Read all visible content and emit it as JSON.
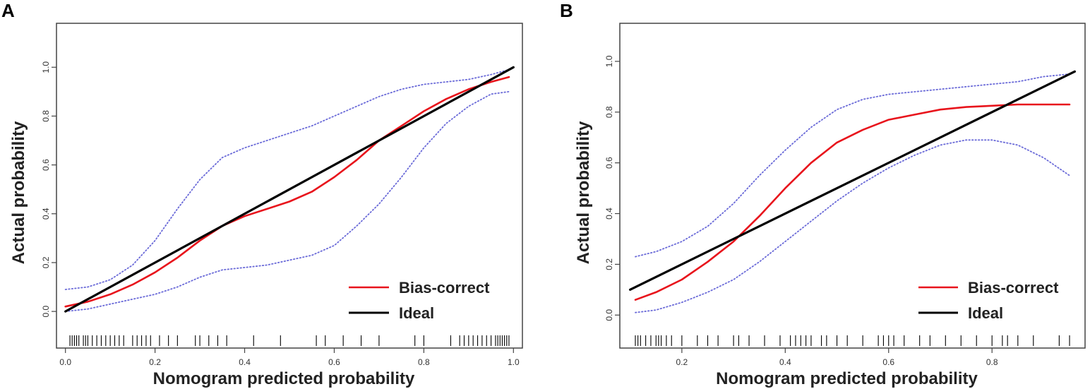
{
  "figure": {
    "panel_labels": [
      "A",
      "B"
    ]
  },
  "colors": {
    "bias_correct": "#e8141c",
    "ideal": "#000000",
    "ci": "#6a6ad8",
    "axis": "#444444"
  },
  "chart_data": [
    {
      "type": "line",
      "panel": "A",
      "title": "",
      "xlabel": "Nomogram predicted probability",
      "ylabel": "Actual probability",
      "xlim": [
        -0.02,
        1.02
      ],
      "ylim": [
        -0.15,
        1.18
      ],
      "xticks": [
        0.0,
        0.2,
        0.4,
        0.6,
        0.8,
        1.0
      ],
      "xtick_labels": [
        "0.0",
        "0.2",
        "0.4",
        "0.6",
        "0.8",
        "1.0"
      ],
      "yticks": [
        0.0,
        0.2,
        0.4,
        0.6,
        0.8,
        1.0
      ],
      "ytick_labels": [
        "0.0",
        "0.2",
        "0.4",
        "0.6",
        "0.8",
        "1.0"
      ],
      "legend": {
        "placement": "bottom-right",
        "entries": [
          "Bias-correct",
          "Ideal"
        ]
      },
      "series": [
        {
          "name": "Ideal",
          "style": "solid",
          "x": [
            0.0,
            1.0
          ],
          "y": [
            0.0,
            1.0
          ]
        },
        {
          "name": "Bias-correct",
          "style": "solid",
          "x": [
            0.0,
            0.05,
            0.1,
            0.15,
            0.2,
            0.25,
            0.3,
            0.35,
            0.4,
            0.45,
            0.5,
            0.55,
            0.6,
            0.65,
            0.7,
            0.75,
            0.8,
            0.85,
            0.9,
            0.95,
            0.99
          ],
          "y": [
            0.02,
            0.04,
            0.07,
            0.11,
            0.16,
            0.22,
            0.29,
            0.35,
            0.39,
            0.42,
            0.45,
            0.49,
            0.55,
            0.62,
            0.7,
            0.76,
            0.82,
            0.87,
            0.91,
            0.94,
            0.96
          ]
        },
        {
          "name": "Upper CI",
          "style": "dotted",
          "x": [
            0.0,
            0.05,
            0.1,
            0.15,
            0.2,
            0.25,
            0.3,
            0.35,
            0.4,
            0.45,
            0.5,
            0.55,
            0.6,
            0.65,
            0.7,
            0.75,
            0.8,
            0.85,
            0.9,
            0.95,
            0.99
          ],
          "y": [
            0.09,
            0.1,
            0.13,
            0.19,
            0.29,
            0.42,
            0.54,
            0.63,
            0.67,
            0.7,
            0.73,
            0.76,
            0.8,
            0.84,
            0.88,
            0.91,
            0.93,
            0.94,
            0.95,
            0.97,
            0.99
          ]
        },
        {
          "name": "Lower CI",
          "style": "dotted",
          "x": [
            0.0,
            0.05,
            0.1,
            0.15,
            0.2,
            0.25,
            0.3,
            0.35,
            0.4,
            0.45,
            0.5,
            0.55,
            0.6,
            0.65,
            0.7,
            0.75,
            0.8,
            0.85,
            0.9,
            0.95,
            0.99
          ],
          "y": [
            0.0,
            0.01,
            0.03,
            0.05,
            0.07,
            0.1,
            0.14,
            0.17,
            0.18,
            0.19,
            0.21,
            0.23,
            0.27,
            0.35,
            0.44,
            0.55,
            0.67,
            0.77,
            0.84,
            0.89,
            0.9
          ]
        }
      ],
      "rug": [
        0.01,
        0.015,
        0.02,
        0.025,
        0.03,
        0.04,
        0.045,
        0.05,
        0.06,
        0.07,
        0.08,
        0.09,
        0.1,
        0.11,
        0.12,
        0.13,
        0.15,
        0.16,
        0.17,
        0.18,
        0.19,
        0.21,
        0.23,
        0.25,
        0.29,
        0.3,
        0.32,
        0.34,
        0.36,
        0.42,
        0.48,
        0.56,
        0.58,
        0.62,
        0.66,
        0.7,
        0.78,
        0.8,
        0.86,
        0.88,
        0.89,
        0.9,
        0.91,
        0.92,
        0.93,
        0.94,
        0.95,
        0.96,
        0.965,
        0.97,
        0.975,
        0.98,
        0.985,
        0.99
      ]
    },
    {
      "type": "line",
      "panel": "B",
      "title": "",
      "xlabel": "Nomogram predicted probability",
      "ylabel": "Actual probability",
      "xlim": [
        0.08,
        0.98
      ],
      "ylim": [
        -0.13,
        1.15
      ],
      "xticks": [
        0.2,
        0.4,
        0.6,
        0.8
      ],
      "xtick_labels": [
        "0.2",
        "0.4",
        "0.6",
        "0.8"
      ],
      "yticks": [
        0.0,
        0.2,
        0.4,
        0.6,
        0.8,
        1.0
      ],
      "ytick_labels": [
        "0.0",
        "0.2",
        "0.4",
        "0.6",
        "0.8",
        "1.0"
      ],
      "legend": {
        "placement": "bottom-right",
        "entries": [
          "Bias-correct",
          "Ideal"
        ]
      },
      "series": [
        {
          "name": "Ideal",
          "style": "solid",
          "x": [
            0.1,
            0.96
          ],
          "y": [
            0.1,
            0.96
          ]
        },
        {
          "name": "Bias-correct",
          "style": "solid",
          "x": [
            0.11,
            0.15,
            0.2,
            0.25,
            0.3,
            0.35,
            0.4,
            0.45,
            0.5,
            0.55,
            0.6,
            0.65,
            0.7,
            0.75,
            0.8,
            0.85,
            0.9,
            0.95
          ],
          "y": [
            0.06,
            0.09,
            0.14,
            0.21,
            0.29,
            0.39,
            0.5,
            0.6,
            0.68,
            0.73,
            0.77,
            0.79,
            0.81,
            0.82,
            0.825,
            0.83,
            0.83,
            0.83
          ]
        },
        {
          "name": "Upper CI",
          "style": "dotted",
          "x": [
            0.11,
            0.15,
            0.2,
            0.25,
            0.3,
            0.35,
            0.4,
            0.45,
            0.5,
            0.55,
            0.6,
            0.65,
            0.7,
            0.75,
            0.8,
            0.85,
            0.9,
            0.95
          ],
          "y": [
            0.23,
            0.25,
            0.29,
            0.35,
            0.44,
            0.55,
            0.65,
            0.74,
            0.81,
            0.85,
            0.87,
            0.88,
            0.89,
            0.9,
            0.91,
            0.92,
            0.94,
            0.95
          ]
        },
        {
          "name": "Lower CI",
          "style": "dotted",
          "x": [
            0.11,
            0.15,
            0.2,
            0.25,
            0.3,
            0.35,
            0.4,
            0.45,
            0.5,
            0.55,
            0.6,
            0.65,
            0.7,
            0.75,
            0.8,
            0.85,
            0.9,
            0.95
          ],
          "y": [
            0.01,
            0.02,
            0.05,
            0.09,
            0.14,
            0.21,
            0.29,
            0.37,
            0.45,
            0.52,
            0.58,
            0.63,
            0.67,
            0.69,
            0.69,
            0.67,
            0.62,
            0.55
          ]
        }
      ],
      "rug": [
        0.11,
        0.115,
        0.12,
        0.13,
        0.14,
        0.15,
        0.155,
        0.16,
        0.17,
        0.18,
        0.2,
        0.23,
        0.25,
        0.27,
        0.3,
        0.31,
        0.33,
        0.36,
        0.39,
        0.41,
        0.42,
        0.43,
        0.44,
        0.45,
        0.47,
        0.48,
        0.5,
        0.52,
        0.55,
        0.58,
        0.59,
        0.6,
        0.61,
        0.63,
        0.66,
        0.68,
        0.71,
        0.74,
        0.77,
        0.8,
        0.82,
        0.83,
        0.85,
        0.88,
        0.93,
        0.95
      ]
    }
  ]
}
